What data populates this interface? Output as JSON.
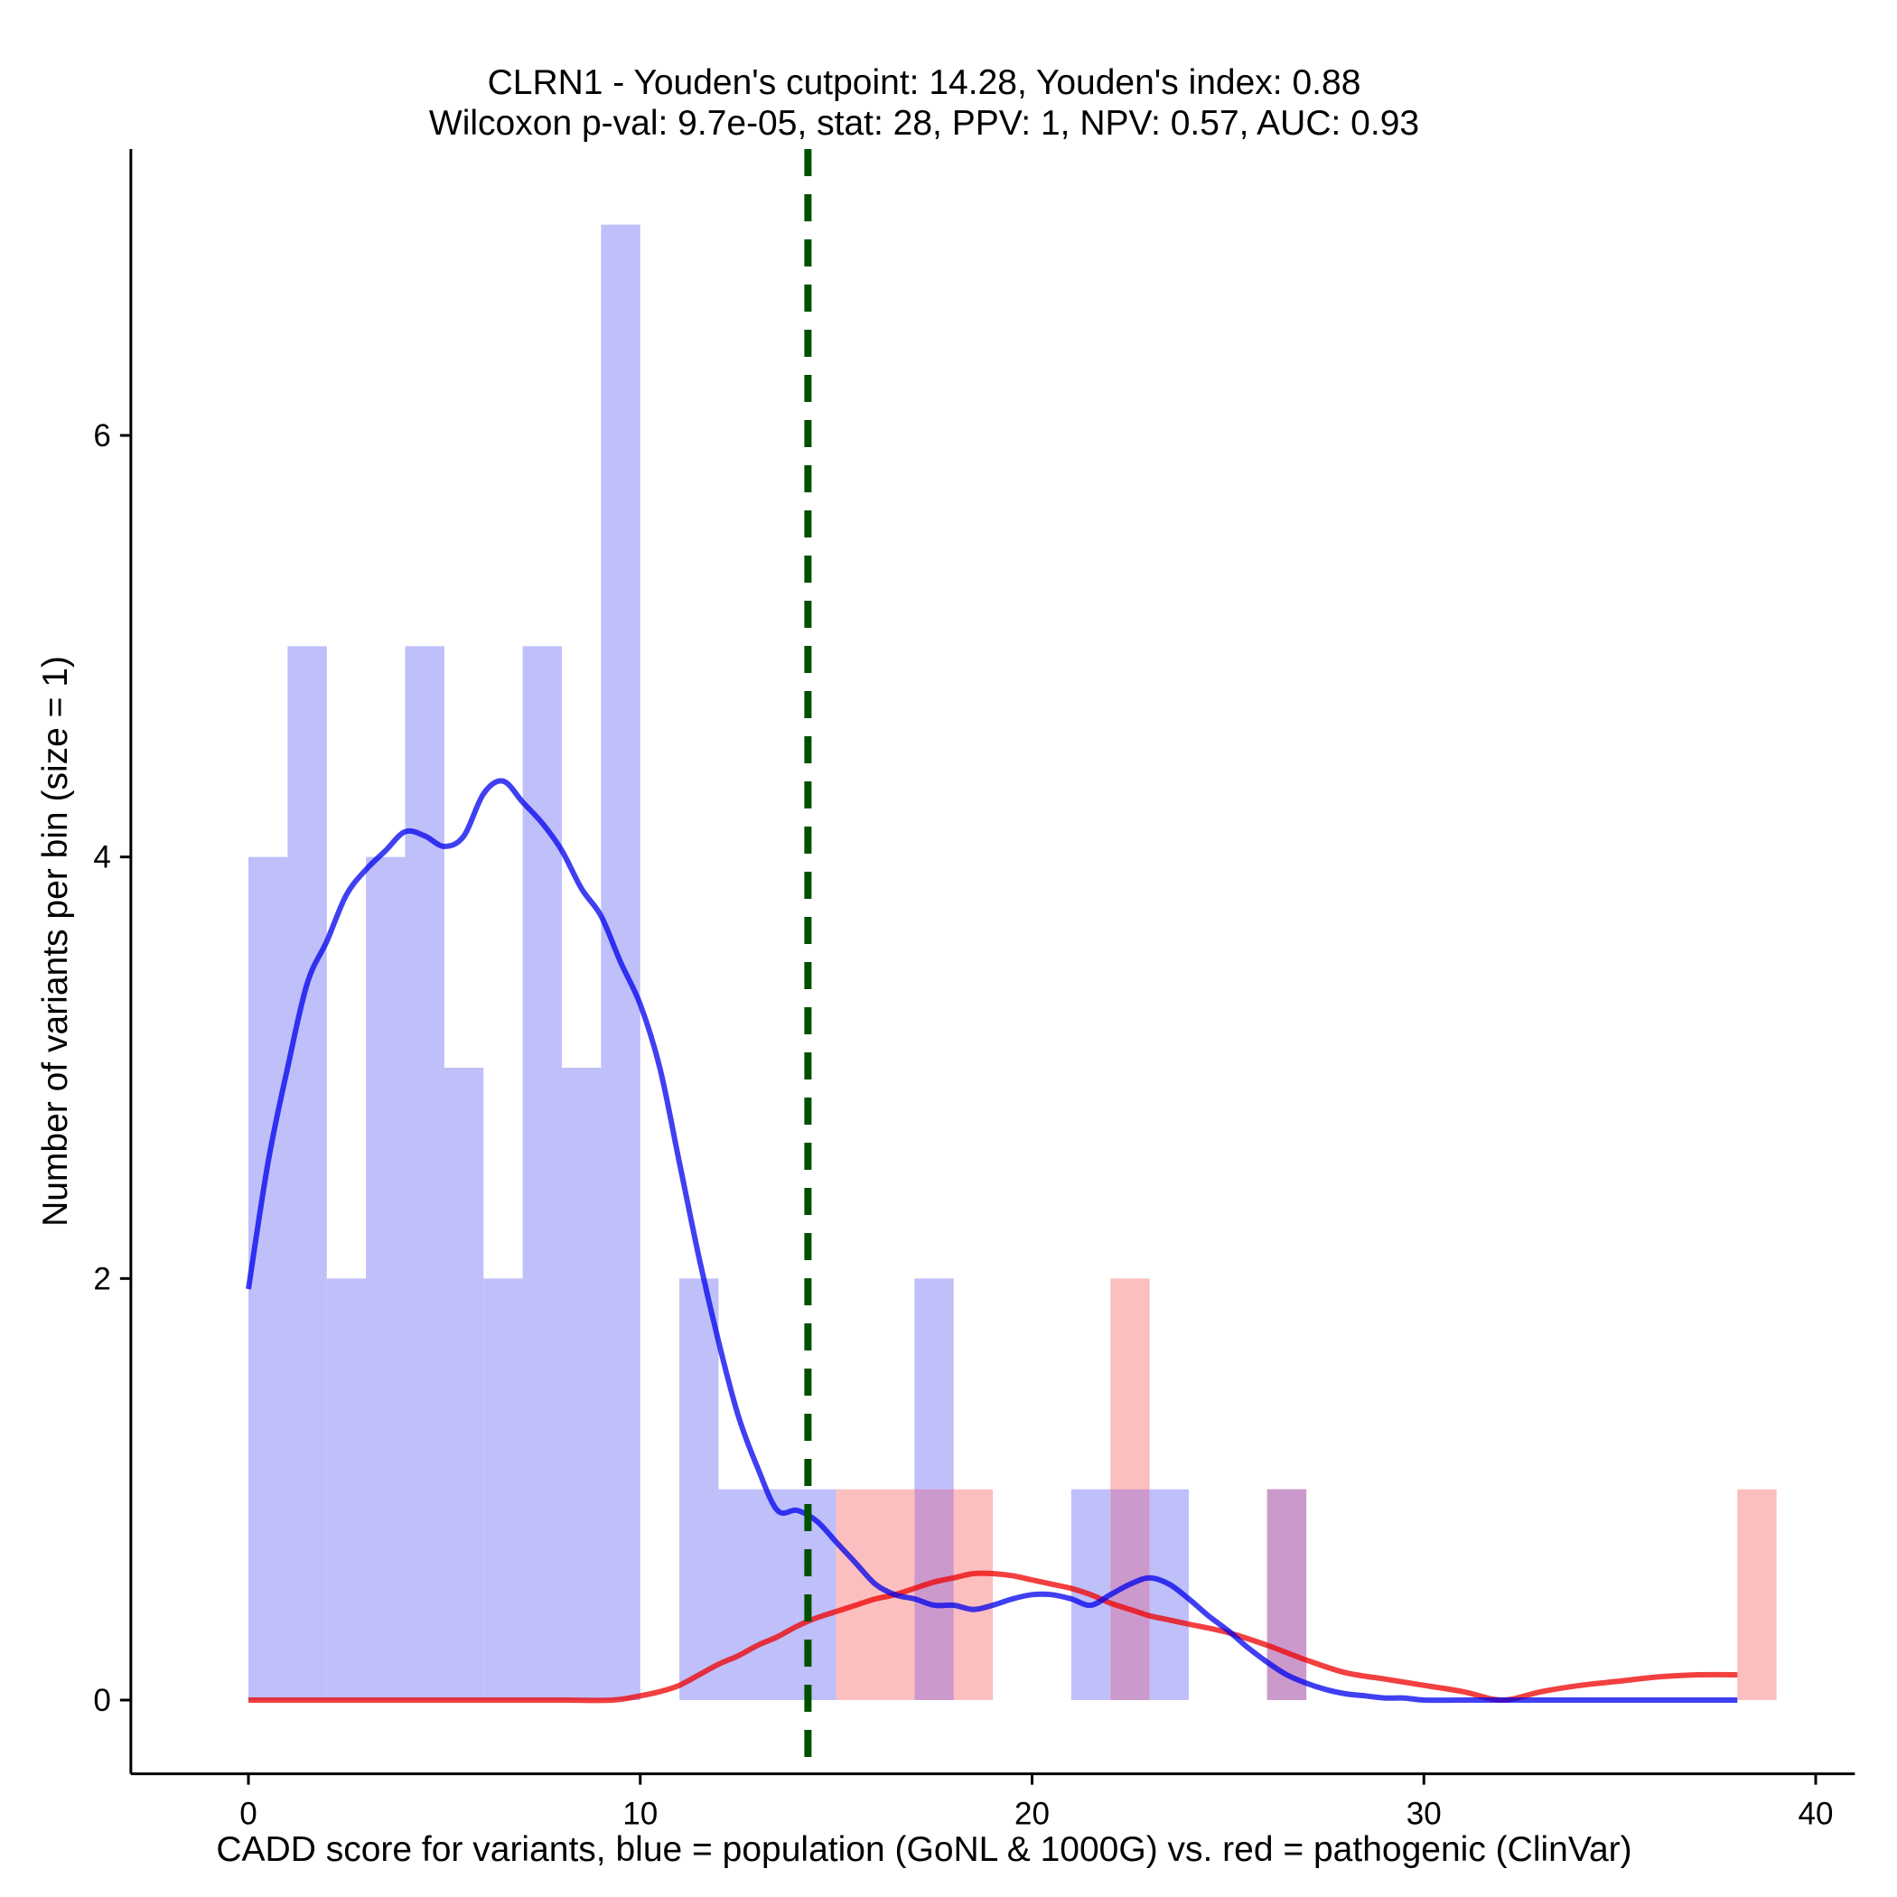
{
  "chart_data": {
    "type": "bar",
    "title": "CLRN1 - Youden's cutpoint: 14.28, Youden's index: 0.88",
    "subtitle": "Wilcoxon p-val: 9.7e-05, stat: 28, PPV: 1, NPV: 0.57, AUC: 0.93",
    "xlabel": "CADD score for variants, blue = population (GoNL & 1000G) vs. red = pathogenic (ClinVar)",
    "ylabel": "Number of variants per bin (size = 1)",
    "xlim": [
      -3,
      41
    ],
    "ylim": [
      -0.35,
      7.35
    ],
    "x_ticks": [
      0,
      10,
      20,
      30,
      40
    ],
    "y_ticks": [
      0,
      2,
      4,
      6
    ],
    "bin_width": 1,
    "cutpoint": 14.28,
    "colors": {
      "population": "#0000ee",
      "pathogenic": "#ee0000",
      "population_fill": "#bfbffa",
      "pathogenic_fill": "#fcbfbf",
      "overlap_fill": "#cc99cc",
      "cutpoint": "#005000"
    },
    "series": [
      {
        "name": "population",
        "bins": [
          {
            "x": 0,
            "count": 4
          },
          {
            "x": 1,
            "count": 5
          },
          {
            "x": 2,
            "count": 2
          },
          {
            "x": 3,
            "count": 4
          },
          {
            "x": 4,
            "count": 5
          },
          {
            "x": 5,
            "count": 3
          },
          {
            "x": 6,
            "count": 2
          },
          {
            "x": 7,
            "count": 5
          },
          {
            "x": 8,
            "count": 3
          },
          {
            "x": 9,
            "count": 7
          },
          {
            "x": 11,
            "count": 2
          },
          {
            "x": 12,
            "count": 1
          },
          {
            "x": 13,
            "count": 1
          },
          {
            "x": 14,
            "count": 1
          },
          {
            "x": 17,
            "count": 2
          },
          {
            "x": 21,
            "count": 1
          },
          {
            "x": 22,
            "count": 1
          },
          {
            "x": 23,
            "count": 1
          },
          {
            "x": 26,
            "count": 1
          }
        ],
        "density": {
          "x": [
            0,
            0.5,
            1,
            1.5,
            2,
            2.5,
            3,
            3.5,
            4,
            4.5,
            5,
            5.5,
            6,
            6.5,
            7,
            7.5,
            8,
            8.5,
            9,
            9.5,
            10,
            10.5,
            11,
            11.5,
            12,
            12.5,
            13,
            13.5,
            14,
            14.5,
            15,
            15.5,
            16,
            16.5,
            17,
            17.5,
            18,
            18.5,
            19,
            19.5,
            20,
            20.5,
            21,
            21.5,
            22,
            22.5,
            23,
            23.5,
            24,
            24.5,
            25,
            25.5,
            26,
            26.5,
            27,
            27.5,
            28,
            28.5,
            29,
            29.5,
            30,
            31,
            32,
            33,
            34,
            35,
            36,
            37,
            38
          ],
          "y": [
            1.95,
            2.55,
            3.0,
            3.4,
            3.6,
            3.82,
            3.94,
            4.03,
            4.12,
            4.1,
            4.05,
            4.1,
            4.3,
            4.36,
            4.26,
            4.16,
            4.03,
            3.85,
            3.72,
            3.5,
            3.3,
            3.0,
            2.55,
            2.1,
            1.7,
            1.35,
            1.1,
            0.9,
            0.9,
            0.85,
            0.75,
            0.65,
            0.55,
            0.5,
            0.48,
            0.45,
            0.45,
            0.43,
            0.45,
            0.48,
            0.5,
            0.5,
            0.48,
            0.45,
            0.5,
            0.55,
            0.58,
            0.55,
            0.48,
            0.4,
            0.33,
            0.25,
            0.18,
            0.12,
            0.08,
            0.05,
            0.03,
            0.02,
            0.01,
            0.01,
            0,
            0,
            0,
            0,
            0,
            0,
            0,
            0,
            0
          ]
        }
      },
      {
        "name": "pathogenic",
        "bins": [
          {
            "x": 15,
            "count": 1
          },
          {
            "x": 16,
            "count": 1
          },
          {
            "x": 17,
            "count": 1
          },
          {
            "x": 18,
            "count": 1
          },
          {
            "x": 22,
            "count": 2
          },
          {
            "x": 26,
            "count": 1
          },
          {
            "x": 38,
            "count": 1
          }
        ],
        "density": {
          "x": [
            0,
            2,
            4,
            6,
            8,
            9.3,
            10,
            10.5,
            11,
            11.5,
            12,
            12.5,
            13,
            13.5,
            14,
            14.5,
            15,
            15.5,
            16,
            16.5,
            17,
            17.5,
            18,
            18.5,
            19,
            19.5,
            20,
            20.5,
            21,
            21.5,
            22,
            22.5,
            23,
            23.5,
            24,
            25,
            26,
            27,
            28,
            29,
            30,
            31,
            32,
            33,
            34,
            35,
            36,
            37,
            38
          ],
          "y": [
            0,
            0,
            0,
            0,
            0,
            0,
            0.02,
            0.04,
            0.07,
            0.12,
            0.17,
            0.21,
            0.26,
            0.3,
            0.35,
            0.39,
            0.42,
            0.45,
            0.48,
            0.5,
            0.53,
            0.56,
            0.58,
            0.6,
            0.6,
            0.59,
            0.57,
            0.55,
            0.53,
            0.5,
            0.46,
            0.43,
            0.4,
            0.38,
            0.36,
            0.32,
            0.26,
            0.19,
            0.13,
            0.1,
            0.07,
            0.04,
            0.0,
            0.04,
            0.07,
            0.09,
            0.11,
            0.12,
            0.12
          ]
        }
      }
    ]
  }
}
